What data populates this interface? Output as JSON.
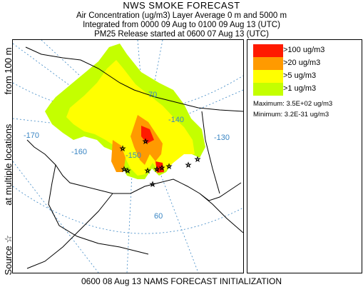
{
  "header": {
    "title": "NWS SMOKE FORECAST",
    "line1": "Air Concentration (ug/m3) Layer Average    0 m and  5000 m",
    "line2": "Integrated from 0000 09 Aug to 0100 09 Aug 13 (UTC)",
    "line3": "PM25 Release started at 0600 07 Aug 13 (UTC)"
  },
  "side_label": {
    "part1": "Source ☆",
    "part2": "at multiple locations",
    "part3": "from  100 m"
  },
  "legend": {
    "items": [
      {
        "label": ">100 ug/m3",
        "color": "#ff1a00"
      },
      {
        "label": ">20 ug/m3",
        "color": "#ff9a00"
      },
      {
        "label": ">5 ug/m3",
        "color": "#ffff00"
      },
      {
        "label": ">1 ug/m3",
        "color": "#c4ff00"
      }
    ],
    "maximum": "Maximum: 3.5E+02 ug/m3",
    "minimum": "Minimum: 3.2E-31 ug/m3"
  },
  "map": {
    "grid_labels": [
      "-170",
      "-160",
      "-150",
      "-140",
      "-130",
      "70",
      "60"
    ],
    "grid_color": "#3a86c4",
    "land_outline_color": "#000000"
  },
  "footer": "0600 08 Aug 13 NAMS FORECAST INITIALIZATION"
}
